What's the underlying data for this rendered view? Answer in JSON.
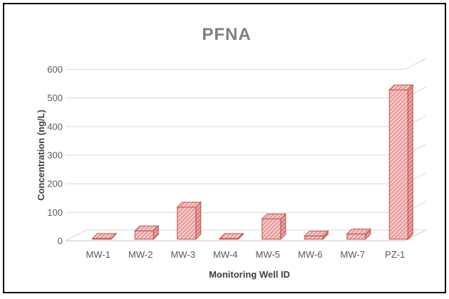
{
  "chart_data": {
    "type": "bar",
    "style": "3d-column",
    "title": "PFNA",
    "xlabel": "Monitoring Well ID",
    "ylabel": "Concentration (ng/L)",
    "categories": [
      "MW-1",
      "MW-2",
      "MW-3",
      "MW-4",
      "MW-5",
      "MW-6",
      "MW-7",
      "PZ-1"
    ],
    "values": [
      0,
      29,
      112,
      0,
      71,
      11,
      18,
      522
    ],
    "ylim": [
      0,
      600
    ],
    "yticks": [
      "0",
      "100",
      "200",
      "300",
      "400",
      "500",
      "600"
    ],
    "grid": true,
    "legend": "none",
    "colors": {
      "bar_fill": "#f4c6c6",
      "bar_edge": "#c0504d",
      "bar_hatch": "#d36a66",
      "bar_side": "#e8a3a1",
      "gridline": "#d9d9d9",
      "title": "#7f7f7f",
      "tick_text": "#595959"
    }
  }
}
